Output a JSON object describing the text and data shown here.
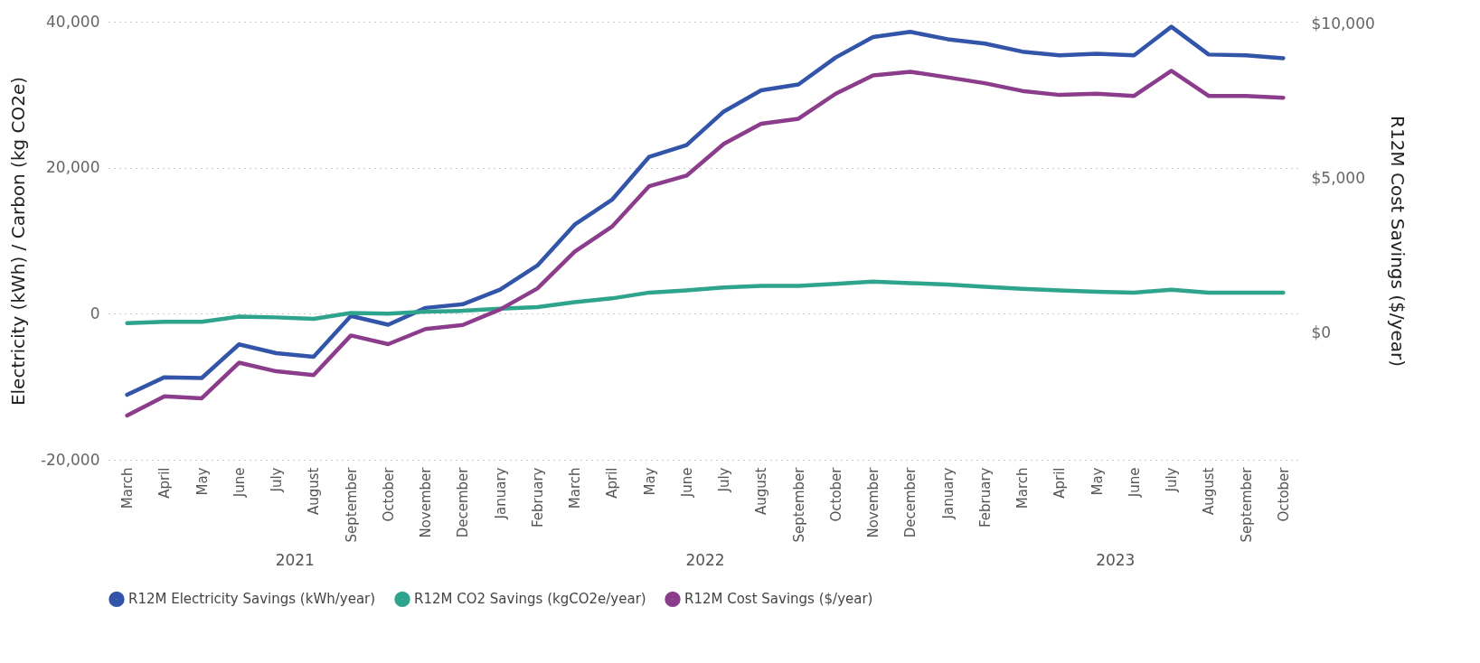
{
  "chart_data": {
    "type": "line",
    "ylabel": "Electricity (kWh) / Carbon (kg CO2e)",
    "y2label": "R12M Cost Savings ($/year)",
    "categories": [
      "March",
      "April",
      "May",
      "June",
      "July",
      "August",
      "September",
      "October",
      "November",
      "December",
      "January",
      "February",
      "March",
      "April",
      "May",
      "June",
      "July",
      "August",
      "September",
      "October",
      "November",
      "December",
      "January",
      "February",
      "March",
      "April",
      "May",
      "June",
      "July",
      "August",
      "September",
      "October"
    ],
    "annotations": [
      "2021",
      "2022",
      "2023"
    ],
    "series": [
      {
        "name": "R12M Electricity Savings (kWh/year)",
        "color": "#3255a9",
        "values": [
          -11100,
          -8700,
          -8800,
          -4200,
          -5400,
          -5900,
          -300,
          -1500,
          800,
          1300,
          3300,
          6600,
          12200,
          15600,
          21500,
          23100,
          27700,
          30600,
          31400,
          35100,
          37900,
          38600,
          37600,
          37000,
          35900,
          35400,
          35600,
          35400,
          39300,
          35500,
          35400,
          35000
        ]
      },
      {
        "name": "R12M CO2 Savings (kgCO2e/year)",
        "color": "#2fa48c",
        "values": [
          -1300,
          -1100,
          -1100,
          -400,
          -500,
          -700,
          100,
          0,
          300,
          400,
          700,
          900,
          1600,
          2100,
          2900,
          3200,
          3600,
          3800,
          3800,
          4100,
          4400,
          4200,
          4000,
          3700,
          3400,
          3200,
          3000,
          2900,
          3300,
          2900,
          2900,
          2900
        ]
      },
      {
        "name": "R12M Cost Savings ($/year)",
        "color": "#8b3d8c",
        "axis": "y2",
        "values": [
          -2680,
          -2060,
          -2120,
          -970,
          -1250,
          -1370,
          -90,
          -370,
          120,
          250,
          750,
          1430,
          2620,
          3430,
          4740,
          5080,
          6110,
          6760,
          6920,
          7730,
          8320,
          8440,
          8260,
          8070,
          7820,
          7690,
          7730,
          7660,
          8470,
          7660,
          7660,
          7600
        ]
      }
    ],
    "ylim": [
      -20000,
      40000
    ],
    "yticks": [
      {
        "value": -20000,
        "label": "-20,000"
      },
      0,
      {
        "value": 20000,
        "label": "20,000"
      },
      {
        "value": 40000,
        "label": "40,000"
      }
    ],
    "y2lim": [
      -4110,
      10060
    ],
    "y2ticks": [
      {
        "value": 0,
        "label": "$0"
      },
      {
        "value": 5000,
        "label": "$5,000"
      },
      {
        "value": 10000,
        "label": "$10,000"
      }
    ],
    "grid": "y",
    "legend": "bottom",
    "marker": "none",
    "line_style": "solid"
  }
}
